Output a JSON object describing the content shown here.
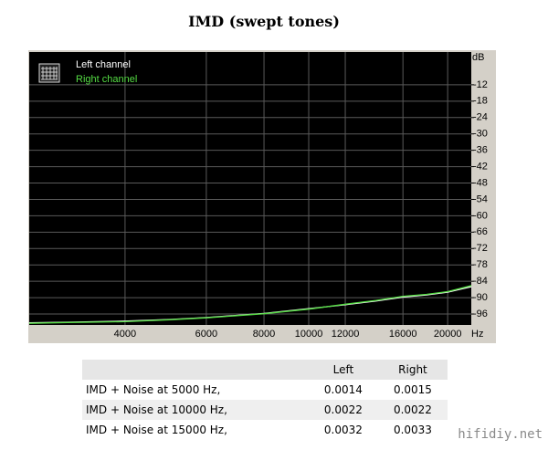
{
  "chart_data": {
    "type": "line",
    "title": "IMD (swept tones)",
    "xscale": "log",
    "x_label": "Hz",
    "y_label": "dB",
    "x": [
      2480,
      3000,
      4000,
      5000,
      6000,
      8000,
      10000,
      12000,
      14000,
      16000,
      18000,
      20000,
      22500
    ],
    "series": [
      {
        "name": "Left channel",
        "color": "#ffffff",
        "values": [
          -99.2,
          -99.0,
          -98.6,
          -98.0,
          -97.3,
          -95.8,
          -94.0,
          -92.6,
          -91.2,
          -89.8,
          -89.0,
          -88.0,
          -86.0
        ]
      },
      {
        "name": "Right channel",
        "color": "#55dd44",
        "values": [
          -99.4,
          -99.1,
          -98.8,
          -98.1,
          -97.4,
          -95.9,
          -94.2,
          -92.4,
          -91.0,
          -89.5,
          -88.8,
          -87.8,
          -85.6
        ]
      }
    ],
    "xlim": [
      2480,
      22500
    ],
    "xticks": [
      4000,
      6000,
      8000,
      10000,
      12000,
      16000,
      20000
    ],
    "ylim": [
      -100,
      0
    ],
    "yticks": [
      -12,
      -18,
      -24,
      -30,
      -36,
      -42,
      -48,
      -54,
      -60,
      -66,
      -72,
      -78,
      -84,
      -90,
      -96
    ],
    "grid": true,
    "legend": "top-left"
  },
  "table": {
    "columns": [
      "Left",
      "Right"
    ],
    "rows": [
      [
        "IMD + Noise at 5000 Hz,",
        "0.0014",
        "0.0015"
      ],
      [
        "IMD + Noise at 10000 Hz,",
        "0.0022",
        "0.0022"
      ],
      [
        "IMD + Noise at 15000 Hz,",
        "0.0032",
        "0.0033"
      ]
    ]
  },
  "watermark": "hifidiy.net"
}
